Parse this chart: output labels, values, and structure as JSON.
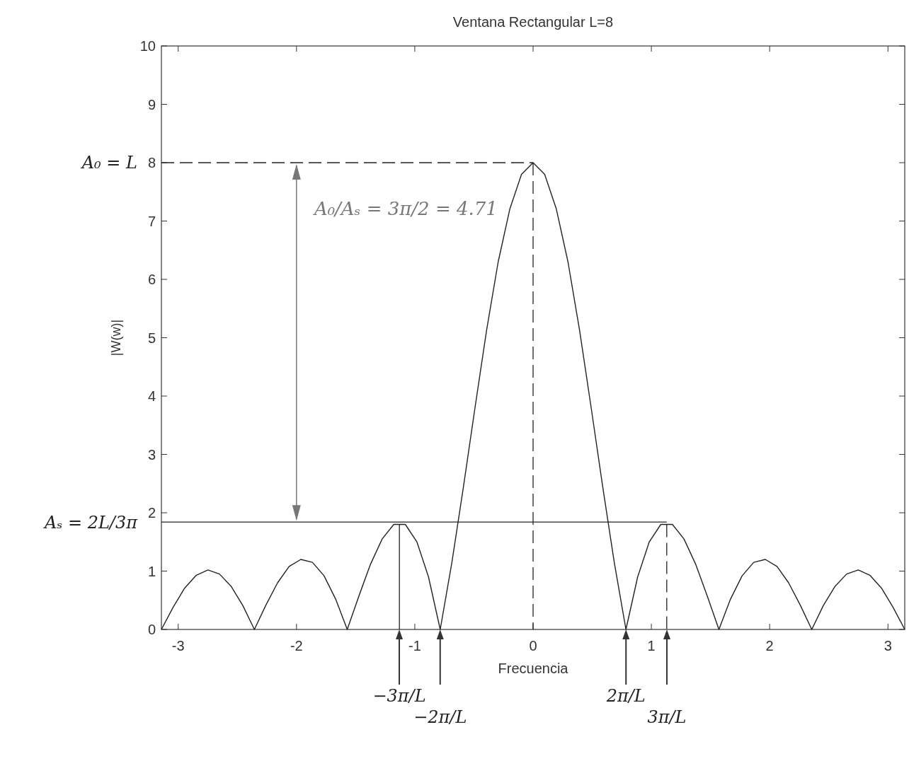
{
  "chart_data": {
    "type": "line",
    "title": "Ventana Rectangular L=8",
    "xlabel": "Frecuencia",
    "ylabel": "|W(w)|",
    "xlim": [
      -3.142,
      3.142
    ],
    "xticks": [
      -3,
      -2,
      -1,
      0,
      1,
      2,
      3
    ],
    "ylim": [
      0,
      10
    ],
    "yticks": [
      0,
      1,
      2,
      3,
      4,
      5,
      6,
      7,
      8,
      9,
      10
    ],
    "grid": false,
    "marker": "none",
    "line_style": "solid",
    "series": [
      {
        "color": "#222222",
        "x": [
          -3.142,
          -3.043,
          -2.945,
          -2.847,
          -2.749,
          -2.651,
          -2.553,
          -2.454,
          -2.356,
          -2.258,
          -2.16,
          -2.062,
          -1.963,
          -1.865,
          -1.767,
          -1.669,
          -1.571,
          -1.473,
          -1.374,
          -1.276,
          -1.178,
          -1.08,
          -0.982,
          -0.884,
          -0.785,
          -0.687,
          -0.589,
          -0.491,
          -0.393,
          -0.295,
          -0.196,
          -0.098,
          0,
          0.098,
          0.196,
          0.295,
          0.393,
          0.491,
          0.589,
          0.687,
          0.785,
          0.884,
          0.982,
          1.08,
          1.178,
          1.276,
          1.374,
          1.473,
          1.571,
          1.669,
          1.767,
          1.865,
          1.963,
          2.062,
          2.16,
          2.258,
          2.356,
          2.454,
          2.553,
          2.651,
          2.749,
          2.847,
          2.945,
          3.043,
          3.142
        ],
        "values": [
          0,
          0.38,
          0.71,
          0.93,
          1.02,
          0.95,
          0.74,
          0.41,
          0,
          0.42,
          0.8,
          1.08,
          1.2,
          1.15,
          0.92,
          0.52,
          0,
          0.57,
          1.12,
          1.55,
          1.8,
          1.8,
          1.5,
          0.9,
          0,
          1.14,
          2.44,
          3.8,
          5.13,
          6.3,
          7.21,
          7.8,
          8,
          7.8,
          7.21,
          6.3,
          5.13,
          3.8,
          2.44,
          1.14,
          0,
          0.9,
          1.5,
          1.8,
          1.8,
          1.55,
          1.12,
          0.57,
          0,
          0.52,
          0.92,
          1.15,
          1.2,
          1.08,
          0.8,
          0.42,
          0,
          0.41,
          0.74,
          0.95,
          1.02,
          0.93,
          0.71,
          0.38,
          0
        ]
      }
    ],
    "ref_lines": [
      {
        "axis": "y",
        "value": 8,
        "label": "A₀ = L",
        "line_style": "dashed",
        "color": "#222222"
      },
      {
        "axis": "y",
        "value": 1.84,
        "label": "Aₛ = 2L/3π",
        "line_style": "solid",
        "color": "#222222"
      },
      {
        "axis": "x",
        "value": 0,
        "line_style": "dashed",
        "color": "#222222"
      },
      {
        "axis": "x",
        "value": -1.13,
        "line_style": "solid",
        "color": "#222222"
      },
      {
        "axis": "x",
        "value": 1.13,
        "line_style": "dashed",
        "color": "#222222"
      }
    ],
    "annotations": [
      "A₀/Aₛ = 3π/2 = 4.71",
      "−3π/L",
      "−2π/L",
      "2π/L",
      "3π/L"
    ]
  }
}
